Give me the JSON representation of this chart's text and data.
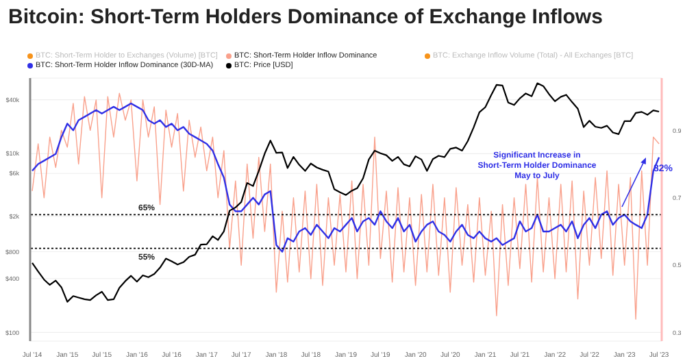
{
  "chart_data": {
    "type": "line",
    "title": "Bitcoin: Short-Term Holders Dominance of Exchange Inflows",
    "x": [
      "2014-07",
      "2014-08",
      "2014-09",
      "2014-10",
      "2014-11",
      "2014-12",
      "2015-01",
      "2015-02",
      "2015-03",
      "2015-04",
      "2015-05",
      "2015-06",
      "2015-07",
      "2015-08",
      "2015-09",
      "2015-10",
      "2015-11",
      "2015-12",
      "2016-01",
      "2016-02",
      "2016-03",
      "2016-04",
      "2016-05",
      "2016-06",
      "2016-07",
      "2016-08",
      "2016-09",
      "2016-10",
      "2016-11",
      "2016-12",
      "2017-01",
      "2017-02",
      "2017-03",
      "2017-04",
      "2017-05",
      "2017-06",
      "2017-07",
      "2017-08",
      "2017-09",
      "2017-10",
      "2017-11",
      "2017-12",
      "2018-01",
      "2018-02",
      "2018-03",
      "2018-04",
      "2018-05",
      "2018-06",
      "2018-07",
      "2018-08",
      "2018-09",
      "2018-10",
      "2018-11",
      "2018-12",
      "2019-01",
      "2019-02",
      "2019-03",
      "2019-04",
      "2019-05",
      "2019-06",
      "2019-07",
      "2019-08",
      "2019-09",
      "2019-10",
      "2019-11",
      "2019-12",
      "2020-01",
      "2020-02",
      "2020-03",
      "2020-04",
      "2020-05",
      "2020-06",
      "2020-07",
      "2020-08",
      "2020-09",
      "2020-10",
      "2020-11",
      "2020-12",
      "2021-01",
      "2021-02",
      "2021-03",
      "2021-04",
      "2021-05",
      "2021-06",
      "2021-07",
      "2021-08",
      "2021-09",
      "2021-10",
      "2021-11",
      "2021-12",
      "2022-01",
      "2022-02",
      "2022-03",
      "2022-04",
      "2022-05",
      "2022-06",
      "2022-07",
      "2022-08",
      "2022-09",
      "2022-10",
      "2022-11",
      "2022-12",
      "2023-01",
      "2023-02",
      "2023-03",
      "2023-04",
      "2023-05",
      "2023-06",
      "2023-07"
    ],
    "series": [
      {
        "name": "BTC: Short-Term Holder Inflow Dominance",
        "color": "#f9a08b",
        "axis": "y2",
        "values": [
          0.72,
          0.86,
          0.7,
          0.88,
          0.79,
          0.9,
          0.85,
          0.98,
          0.8,
          1.0,
          0.9,
          0.99,
          0.7,
          1.0,
          0.88,
          1.01,
          0.93,
          0.99,
          0.75,
          0.99,
          0.88,
          0.97,
          0.68,
          0.96,
          0.85,
          0.95,
          0.72,
          0.93,
          0.82,
          0.91,
          0.78,
          0.88,
          0.7,
          0.84,
          0.55,
          0.75,
          0.5,
          0.8,
          0.58,
          0.82,
          0.6,
          0.8,
          0.42,
          0.66,
          0.45,
          0.7,
          0.48,
          0.72,
          0.46,
          0.74,
          0.44,
          0.7,
          0.5,
          0.71,
          0.48,
          0.75,
          0.46,
          0.74,
          0.5,
          0.88,
          0.52,
          0.72,
          0.45,
          0.73,
          0.48,
          0.7,
          0.44,
          0.71,
          0.48,
          0.74,
          0.47,
          0.7,
          0.42,
          0.73,
          0.5,
          0.68,
          0.45,
          0.7,
          0.47,
          0.66,
          0.35,
          0.68,
          0.44,
          0.7,
          0.49,
          0.74,
          0.45,
          0.76,
          0.48,
          0.7,
          0.46,
          0.74,
          0.48,
          0.75,
          0.4,
          0.72,
          0.5,
          0.76,
          0.52,
          0.78,
          0.47,
          0.74,
          0.5,
          0.76,
          0.34,
          0.78,
          0.5,
          0.88,
          0.86
        ]
      },
      {
        "name": "BTC: Short-Term Holder Inflow Dominance (30D-MA)",
        "color": "#2f2fe6",
        "axis": "y2",
        "values": [
          0.78,
          0.8,
          0.81,
          0.82,
          0.83,
          0.88,
          0.92,
          0.9,
          0.93,
          0.94,
          0.95,
          0.96,
          0.95,
          0.96,
          0.97,
          0.96,
          0.97,
          0.98,
          0.97,
          0.96,
          0.93,
          0.92,
          0.93,
          0.91,
          0.92,
          0.9,
          0.91,
          0.89,
          0.88,
          0.87,
          0.86,
          0.84,
          0.8,
          0.76,
          0.68,
          0.66,
          0.66,
          0.68,
          0.7,
          0.68,
          0.71,
          0.72,
          0.56,
          0.54,
          0.58,
          0.57,
          0.6,
          0.61,
          0.59,
          0.62,
          0.6,
          0.58,
          0.61,
          0.6,
          0.62,
          0.64,
          0.6,
          0.63,
          0.64,
          0.62,
          0.66,
          0.63,
          0.61,
          0.64,
          0.6,
          0.62,
          0.57,
          0.6,
          0.62,
          0.63,
          0.6,
          0.59,
          0.57,
          0.6,
          0.62,
          0.59,
          0.58,
          0.6,
          0.58,
          0.57,
          0.58,
          0.56,
          0.57,
          0.58,
          0.63,
          0.6,
          0.61,
          0.65,
          0.6,
          0.6,
          0.61,
          0.62,
          0.6,
          0.63,
          0.58,
          0.62,
          0.64,
          0.61,
          0.65,
          0.66,
          0.62,
          0.64,
          0.65,
          0.63,
          0.62,
          0.61,
          0.65,
          0.78,
          0.82
        ]
      },
      {
        "name": "BTC: Price [USD]",
        "color": "#000000",
        "axis": "y",
        "values": [
          600,
          480,
          390,
          340,
          380,
          320,
          220,
          255,
          245,
          235,
          230,
          260,
          285,
          230,
          235,
          315,
          375,
          430,
          370,
          435,
          415,
          450,
          530,
          670,
          625,
          575,
          610,
          700,
          740,
          960,
          970,
          1190,
          1080,
          1350,
          2300,
          2500,
          2870,
          4700,
          4340,
          6400,
          10000,
          14000,
          10200,
          10300,
          6900,
          9200,
          7500,
          6400,
          7750,
          7000,
          6600,
          6300,
          4000,
          3700,
          3450,
          3850,
          4100,
          5300,
          8600,
          10800,
          10100,
          9600,
          8300,
          9200,
          7600,
          7200,
          9350,
          8600,
          6400,
          8700,
          9450,
          9150,
          11300,
          11700,
          10800,
          13800,
          19700,
          29000,
          33100,
          45200,
          58800,
          57700,
          37300,
          35000,
          41500,
          47100,
          43800,
          61300,
          57000,
          46300,
          38500,
          43200,
          45500,
          37700,
          31800,
          19800,
          23300,
          20000,
          19400,
          20500,
          17200,
          16500,
          23100,
          23100,
          28500,
          29300,
          27200,
          30500,
          29500
        ]
      }
    ],
    "log": "y",
    "ylim": [
      80,
      70000
    ],
    "yticks": [
      {
        "value": 100,
        "label": "$100"
      },
      {
        "value": 400,
        "label": "$400"
      },
      {
        "value": 800,
        "label": "$800"
      },
      {
        "value": 2000,
        "label": "$2k"
      },
      {
        "value": 6000,
        "label": "$6k"
      },
      {
        "value": 10000,
        "label": "$10k"
      },
      {
        "value": 40000,
        "label": "$40k"
      }
    ],
    "y2lim": [
      0.275,
      1.055
    ],
    "y2ticks": [
      0.3,
      0.5,
      0.7,
      0.9
    ],
    "xlim": [
      "2014-06-20",
      "2023-07-15"
    ],
    "xticks": [
      {
        "value": "2014-07",
        "label": "Jul '14"
      },
      {
        "value": "2015-01",
        "label": "Jan '15"
      },
      {
        "value": "2015-07",
        "label": "Jul '15"
      },
      {
        "value": "2016-01",
        "label": "Jan '16"
      },
      {
        "value": "2016-07",
        "label": "Jul '16"
      },
      {
        "value": "2017-01",
        "label": "Jan '17"
      },
      {
        "value": "2017-07",
        "label": "Jul '17"
      },
      {
        "value": "2018-01",
        "label": "Jan '18"
      },
      {
        "value": "2018-07",
        "label": "Jul '18"
      },
      {
        "value": "2019-01",
        "label": "Jan '19"
      },
      {
        "value": "2019-07",
        "label": "Jul '19"
      },
      {
        "value": "2020-01",
        "label": "Jan '20"
      },
      {
        "value": "2020-07",
        "label": "Jul '20"
      },
      {
        "value": "2021-01",
        "label": "Jan '21"
      },
      {
        "value": "2021-07",
        "label": "Jul '21"
      },
      {
        "value": "2022-01",
        "label": "Jan '22"
      },
      {
        "value": "2022-07",
        "label": "Jul '22"
      },
      {
        "value": "2023-01",
        "label": "Jan '23"
      },
      {
        "value": "2023-07",
        "label": "Jul '23"
      }
    ],
    "ref_lines": [
      {
        "axis": "y2",
        "value": 0.65,
        "label": "65%",
        "color": "#000000",
        "line_style": "dotted"
      },
      {
        "axis": "y2",
        "value": 0.55,
        "label": "55%",
        "color": "#000000",
        "line_style": "dotted"
      }
    ],
    "annotations": [
      "Significant Increase in\nShort-Term Holder Dominance\nMay to July",
      "82%",
      "BTC: Short-Term Holder to Exchanges (Volume) [BTC]",
      "BTC: Exchange Inflow Volume (Total) - All Exchanges [BTC]"
    ],
    "grid": "y",
    "legend": "top left",
    "marker": "none",
    "line_style": "solid"
  }
}
